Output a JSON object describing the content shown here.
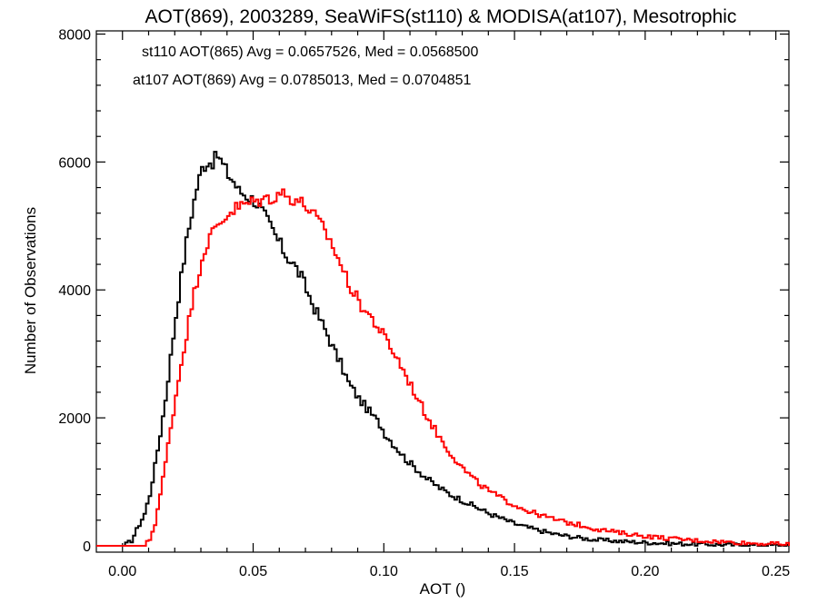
{
  "chart_data": {
    "type": "histogram",
    "title": "AOT(869), 2003289, SeaWiFS(st110) & MODISA(at107), Mesotrophic",
    "xlabel": "AOT ()",
    "ylabel": "Number of Observations",
    "xlim": [
      -0.01,
      0.255
    ],
    "ylim": [
      -100,
      8050
    ],
    "xticks": [
      0.0,
      0.05,
      0.1,
      0.15,
      0.2,
      0.25
    ],
    "xtick_labels": [
      "0.00",
      "0.05",
      "0.10",
      "0.15",
      "0.20",
      "0.25"
    ],
    "yticks": [
      0,
      2000,
      4000,
      6000,
      8000
    ],
    "ytick_labels": [
      "0",
      "2000",
      "4000",
      "6000",
      "8000"
    ],
    "legend": [
      {
        "text": "st110 AOT(865) Avg = 0.0657526, Med = 0.0568500",
        "color": "#000000"
      },
      {
        "text": "at107 AOT(869) Avg = 0.0785013, Med = 0.0704851",
        "color": "#ff0000"
      }
    ],
    "series": [
      {
        "color": "#000000",
        "points": [
          [
            -0.01,
            0
          ],
          [
            0.0,
            0
          ],
          [
            0.003,
            80
          ],
          [
            0.005,
            250
          ],
          [
            0.008,
            500
          ],
          [
            0.01,
            800
          ],
          [
            0.012,
            1250
          ],
          [
            0.014,
            1750
          ],
          [
            0.016,
            2300
          ],
          [
            0.018,
            2950
          ],
          [
            0.02,
            3600
          ],
          [
            0.022,
            4200
          ],
          [
            0.024,
            4750
          ],
          [
            0.026,
            5200
          ],
          [
            0.028,
            5600
          ],
          [
            0.03,
            5900
          ],
          [
            0.032,
            6000
          ],
          [
            0.034,
            6000
          ],
          [
            0.036,
            6100
          ],
          [
            0.038,
            5950
          ],
          [
            0.04,
            5800
          ],
          [
            0.042,
            5700
          ],
          [
            0.044,
            5550
          ],
          [
            0.046,
            5500
          ],
          [
            0.048,
            5450
          ],
          [
            0.05,
            5400
          ],
          [
            0.052,
            5300
          ],
          [
            0.054,
            5150
          ],
          [
            0.056,
            5000
          ],
          [
            0.058,
            4850
          ],
          [
            0.06,
            4700
          ],
          [
            0.062,
            4550
          ],
          [
            0.065,
            4400
          ],
          [
            0.068,
            4200
          ],
          [
            0.07,
            4000
          ],
          [
            0.072,
            3800
          ],
          [
            0.075,
            3550
          ],
          [
            0.078,
            3300
          ],
          [
            0.08,
            3100
          ],
          [
            0.083,
            2850
          ],
          [
            0.086,
            2550
          ],
          [
            0.09,
            2300
          ],
          [
            0.094,
            2100
          ],
          [
            0.098,
            1900
          ],
          [
            0.1,
            1750
          ],
          [
            0.104,
            1550
          ],
          [
            0.108,
            1350
          ],
          [
            0.112,
            1200
          ],
          [
            0.116,
            1050
          ],
          [
            0.12,
            930
          ],
          [
            0.125,
            800
          ],
          [
            0.13,
            700
          ],
          [
            0.135,
            600
          ],
          [
            0.14,
            500
          ],
          [
            0.145,
            420
          ],
          [
            0.15,
            340
          ],
          [
            0.155,
            280
          ],
          [
            0.16,
            230
          ],
          [
            0.165,
            180
          ],
          [
            0.17,
            150
          ],
          [
            0.175,
            120
          ],
          [
            0.18,
            95
          ],
          [
            0.19,
            70
          ],
          [
            0.2,
            50
          ],
          [
            0.21,
            35
          ],
          [
            0.22,
            25
          ],
          [
            0.23,
            15
          ],
          [
            0.24,
            10
          ],
          [
            0.255,
            5
          ]
        ]
      },
      {
        "color": "#ff0000",
        "points": [
          [
            -0.01,
            0
          ],
          [
            0.008,
            0
          ],
          [
            0.01,
            100
          ],
          [
            0.012,
            350
          ],
          [
            0.014,
            800
          ],
          [
            0.016,
            1300
          ],
          [
            0.018,
            1850
          ],
          [
            0.02,
            2350
          ],
          [
            0.022,
            2850
          ],
          [
            0.024,
            3300
          ],
          [
            0.026,
            3750
          ],
          [
            0.028,
            4150
          ],
          [
            0.03,
            4500
          ],
          [
            0.032,
            4750
          ],
          [
            0.035,
            4950
          ],
          [
            0.038,
            5100
          ],
          [
            0.04,
            5200
          ],
          [
            0.043,
            5280
          ],
          [
            0.046,
            5330
          ],
          [
            0.05,
            5380
          ],
          [
            0.054,
            5420
          ],
          [
            0.058,
            5460
          ],
          [
            0.06,
            5540
          ],
          [
            0.063,
            5440
          ],
          [
            0.066,
            5420
          ],
          [
            0.07,
            5300
          ],
          [
            0.074,
            5100
          ],
          [
            0.078,
            4850
          ],
          [
            0.082,
            4500
          ],
          [
            0.085,
            4200
          ],
          [
            0.088,
            3950
          ],
          [
            0.091,
            3750
          ],
          [
            0.095,
            3550
          ],
          [
            0.1,
            3250
          ],
          [
            0.105,
            2900
          ],
          [
            0.11,
            2500
          ],
          [
            0.115,
            2100
          ],
          [
            0.12,
            1750
          ],
          [
            0.125,
            1450
          ],
          [
            0.13,
            1200
          ],
          [
            0.135,
            1000
          ],
          [
            0.14,
            850
          ],
          [
            0.145,
            730
          ],
          [
            0.15,
            630
          ],
          [
            0.155,
            540
          ],
          [
            0.16,
            470
          ],
          [
            0.165,
            410
          ],
          [
            0.17,
            360
          ],
          [
            0.175,
            320
          ],
          [
            0.18,
            270
          ],
          [
            0.19,
            200
          ],
          [
            0.2,
            150
          ],
          [
            0.21,
            110
          ],
          [
            0.22,
            80
          ],
          [
            0.23,
            60
          ],
          [
            0.24,
            40
          ],
          [
            0.255,
            20
          ]
        ]
      }
    ]
  }
}
